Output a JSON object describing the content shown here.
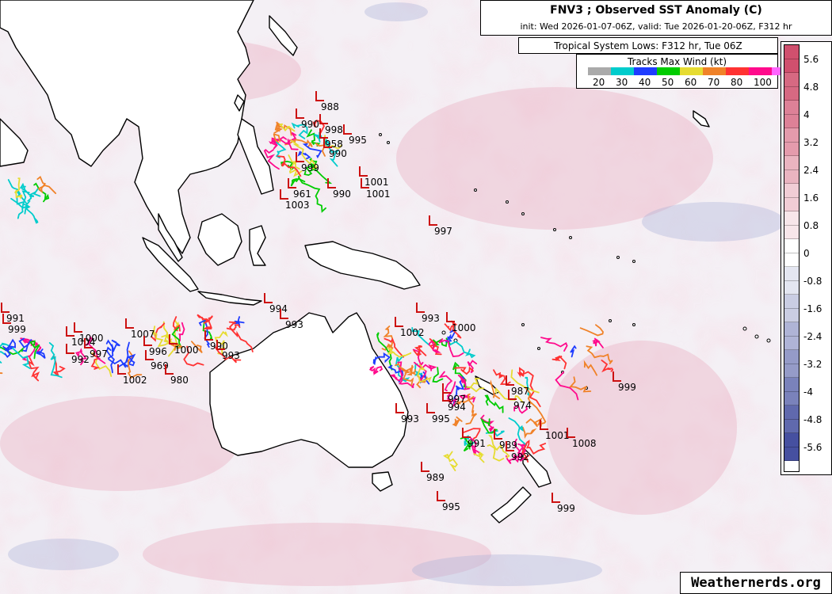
{
  "header": {
    "title": "FNV3 ; Observed SST Anomaly (C)",
    "subtitle": "init: Wed 2026-01-07-06Z, valid: Tue 2026-01-20-06Z, F312 hr"
  },
  "lows_legend": {
    "title": "Tropical System Lows: F312 hr, Tue 06Z"
  },
  "wind_legend": {
    "title": "Tracks Max Wind (kt)",
    "labels": [
      "20",
      "30",
      "40",
      "50",
      "60",
      "70",
      "80",
      "100"
    ],
    "colors": [
      "#aaaaaa",
      "#00cccc",
      "#1e3cff",
      "#00cc00",
      "#e6dc32",
      "#f08228",
      "#ff3232",
      "#ff0a8c",
      "#ff64ff"
    ]
  },
  "colorbar": {
    "ticks": [
      "5.6",
      "4.8",
      "4",
      "3.2",
      "2.4",
      "1.6",
      "0.8",
      "0",
      "-0.8",
      "-1.6",
      "-2.4",
      "-3.2",
      "-4",
      "-4.8",
      "-5.6"
    ]
  },
  "credit": "Weathernerds.org",
  "lows": [
    {
      "label": "988"
    },
    {
      "label": "990"
    },
    {
      "label": "998"
    },
    {
      "label": "995"
    },
    {
      "label": "958"
    },
    {
      "label": "990"
    },
    {
      "label": "999"
    },
    {
      "label": "1001"
    },
    {
      "label": "1001"
    },
    {
      "label": "990"
    },
    {
      "label": "961"
    },
    {
      "label": "1003"
    },
    {
      "label": "997"
    },
    {
      "label": "991"
    },
    {
      "label": "999"
    },
    {
      "label": "1000"
    },
    {
      "label": "1007"
    },
    {
      "label": "1004"
    },
    {
      "label": "997"
    },
    {
      "label": "992"
    },
    {
      "label": "996"
    },
    {
      "label": "1000"
    },
    {
      "label": "969"
    },
    {
      "label": "1002"
    },
    {
      "label": "980"
    },
    {
      "label": "990"
    },
    {
      "label": "993"
    },
    {
      "label": "994"
    },
    {
      "label": "993"
    },
    {
      "label": "1002"
    },
    {
      "label": "993"
    },
    {
      "label": "1000"
    },
    {
      "label": "987"
    },
    {
      "label": "974"
    },
    {
      "label": "997"
    },
    {
      "label": "994"
    },
    {
      "label": "995"
    },
    {
      "label": "993"
    },
    {
      "label": "991"
    },
    {
      "label": "989"
    },
    {
      "label": "992"
    },
    {
      "label": "1001"
    },
    {
      "label": "1008"
    },
    {
      "label": "999"
    },
    {
      "label": "989"
    },
    {
      "label": "995"
    },
    {
      "label": "999"
    }
  ]
}
